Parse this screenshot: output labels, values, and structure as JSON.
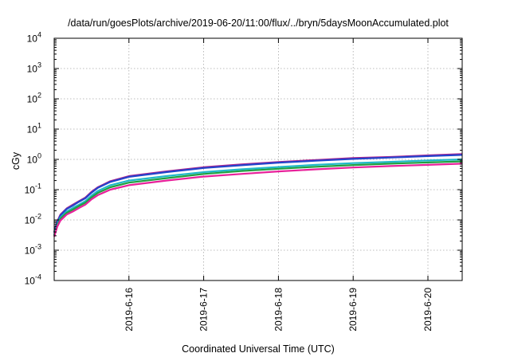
{
  "chart_data": {
    "type": "line",
    "title": "/data/run/goesPlots/archive/2019-06-20/11:00/flux/../bryn/5daysMoonAccumulated.plot",
    "xlabel": "Coordinated Universal Time (UTC)",
    "ylabel": "cGy",
    "yscale": "log",
    "ylim": [
      0.0001,
      10000
    ],
    "xlim": [
      "2019-06-15T00:00",
      "2019-06-20T11:00"
    ],
    "grid": true,
    "legend": "none",
    "y_ticks": [
      {
        "base": "10",
        "exp": "-4",
        "value": 0.0001
      },
      {
        "base": "10",
        "exp": "-3",
        "value": 0.001
      },
      {
        "base": "10",
        "exp": "-2",
        "value": 0.01
      },
      {
        "base": "10",
        "exp": "-1",
        "value": 0.1
      },
      {
        "base": "10",
        "exp": "0",
        "value": 1
      },
      {
        "base": "10",
        "exp": "1",
        "value": 10
      },
      {
        "base": "10",
        "exp": "2",
        "value": 100
      },
      {
        "base": "10",
        "exp": "3",
        "value": 1000
      },
      {
        "base": "10",
        "exp": "4",
        "value": 10000
      }
    ],
    "x_ticks": [
      {
        "label": "2019-6-16",
        "date": "2019-06-16T00:00"
      },
      {
        "label": "2019-6-17",
        "date": "2019-06-17T00:00"
      },
      {
        "label": "2019-6-18",
        "date": "2019-06-18T00:00"
      },
      {
        "label": "2019-6-19",
        "date": "2019-06-19T00:00"
      },
      {
        "label": "2019-6-20",
        "date": "2019-06-20T00:00"
      }
    ],
    "series": [
      {
        "color": "#b0208c",
        "x": [
          "2019-06-15T00:00",
          "2019-06-15T01:00",
          "2019-06-15T02:00",
          "2019-06-15T04:00",
          "2019-06-15T06:00",
          "2019-06-15T08:00",
          "2019-06-15T10:00",
          "2019-06-15T12:00",
          "2019-06-15T14:00",
          "2019-06-15T18:00",
          "2019-06-16T00:00",
          "2019-06-16T12:00",
          "2019-06-17T00:00",
          "2019-06-17T12:00",
          "2019-06-18T00:00",
          "2019-06-18T12:00",
          "2019-06-19T00:00",
          "2019-06-19T12:00",
          "2019-06-20T00:00",
          "2019-06-20T11:00"
        ],
        "y": [
          0.004,
          0.009,
          0.015,
          0.024,
          0.032,
          0.042,
          0.055,
          0.085,
          0.12,
          0.19,
          0.28,
          0.4,
          0.55,
          0.68,
          0.82,
          0.95,
          1.1,
          1.2,
          1.35,
          1.5
        ]
      },
      {
        "color": "#2244cc",
        "x": [
          "2019-06-15T00:00",
          "2019-06-15T01:00",
          "2019-06-15T02:00",
          "2019-06-15T04:00",
          "2019-06-15T06:00",
          "2019-06-15T08:00",
          "2019-06-15T10:00",
          "2019-06-15T12:00",
          "2019-06-15T14:00",
          "2019-06-15T18:00",
          "2019-06-16T00:00",
          "2019-06-16T12:00",
          "2019-06-17T00:00",
          "2019-06-17T12:00",
          "2019-06-18T00:00",
          "2019-06-18T12:00",
          "2019-06-19T00:00",
          "2019-06-19T12:00",
          "2019-06-20T00:00",
          "2019-06-20T11:00"
        ],
        "y": [
          0.0038,
          0.0085,
          0.014,
          0.023,
          0.03,
          0.04,
          0.052,
          0.08,
          0.115,
          0.18,
          0.265,
          0.38,
          0.52,
          0.64,
          0.78,
          0.9,
          1.04,
          1.15,
          1.28,
          1.4
        ]
      },
      {
        "color": "#20b8c8",
        "x": [
          "2019-06-15T00:00",
          "2019-06-15T01:00",
          "2019-06-15T02:00",
          "2019-06-15T04:00",
          "2019-06-15T06:00",
          "2019-06-15T08:00",
          "2019-06-15T10:00",
          "2019-06-15T12:00",
          "2019-06-15T14:00",
          "2019-06-15T18:00",
          "2019-06-16T00:00",
          "2019-06-16T12:00",
          "2019-06-17T00:00",
          "2019-06-17T12:00",
          "2019-06-18T00:00",
          "2019-06-18T12:00",
          "2019-06-19T00:00",
          "2019-06-19T12:00",
          "2019-06-20T00:00",
          "2019-06-20T11:00"
        ],
        "y": [
          0.0032,
          0.007,
          0.012,
          0.019,
          0.025,
          0.032,
          0.042,
          0.064,
          0.09,
          0.14,
          0.2,
          0.28,
          0.38,
          0.47,
          0.56,
          0.66,
          0.75,
          0.83,
          0.92,
          1.0
        ]
      },
      {
        "color": "#20a040",
        "x": [
          "2019-06-15T00:00",
          "2019-06-15T01:00",
          "2019-06-15T02:00",
          "2019-06-15T04:00",
          "2019-06-15T06:00",
          "2019-06-15T08:00",
          "2019-06-15T10:00",
          "2019-06-15T12:00",
          "2019-06-15T14:00",
          "2019-06-15T18:00",
          "2019-06-16T00:00",
          "2019-06-16T12:00",
          "2019-06-17T00:00",
          "2019-06-17T12:00",
          "2019-06-18T00:00",
          "2019-06-18T12:00",
          "2019-06-19T00:00",
          "2019-06-19T12:00",
          "2019-06-20T00:00",
          "2019-06-20T11:00"
        ],
        "y": [
          0.003,
          0.0065,
          0.011,
          0.017,
          0.022,
          0.029,
          0.037,
          0.056,
          0.078,
          0.12,
          0.17,
          0.24,
          0.33,
          0.41,
          0.49,
          0.57,
          0.65,
          0.72,
          0.79,
          0.86
        ]
      },
      {
        "color": "#e8209a",
        "x": [
          "2019-06-15T00:00",
          "2019-06-15T01:00",
          "2019-06-15T02:00",
          "2019-06-15T04:00",
          "2019-06-15T06:00",
          "2019-06-15T08:00",
          "2019-06-15T10:00",
          "2019-06-15T12:00",
          "2019-06-15T14:00",
          "2019-06-15T18:00",
          "2019-06-16T00:00",
          "2019-06-16T12:00",
          "2019-06-17T00:00",
          "2019-06-17T12:00",
          "2019-06-18T00:00",
          "2019-06-18T12:00",
          "2019-06-19T00:00",
          "2019-06-19T12:00",
          "2019-06-20T00:00",
          "2019-06-20T11:00"
        ],
        "y": [
          0.0028,
          0.006,
          0.0095,
          0.015,
          0.019,
          0.025,
          0.032,
          0.048,
          0.066,
          0.1,
          0.14,
          0.2,
          0.27,
          0.33,
          0.4,
          0.47,
          0.54,
          0.6,
          0.66,
          0.72
        ]
      }
    ]
  }
}
